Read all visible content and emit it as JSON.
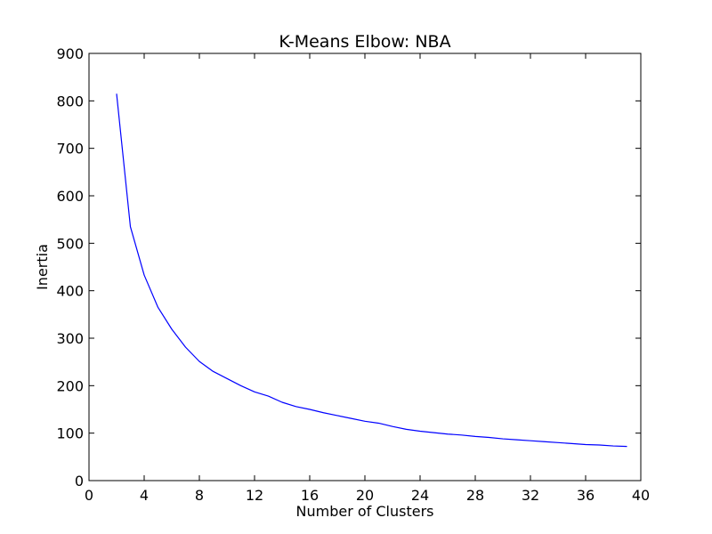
{
  "chart_data": {
    "type": "line",
    "title": "K-Means Elbow: NBA",
    "xlabel": "Number of Clusters",
    "ylabel": "Inertia",
    "xlim": [
      0,
      40
    ],
    "ylim": [
      0,
      900
    ],
    "xticks": [
      0,
      4,
      8,
      12,
      16,
      20,
      24,
      28,
      32,
      36,
      40
    ],
    "yticks": [
      0,
      100,
      200,
      300,
      400,
      500,
      600,
      700,
      800,
      900
    ],
    "grid": false,
    "series": [
      {
        "color": "#0000ff",
        "x": [
          2,
          3,
          4,
          5,
          6,
          7,
          8,
          9,
          10,
          11,
          12,
          13,
          14,
          15,
          16,
          17,
          18,
          19,
          20,
          21,
          22,
          23,
          24,
          25,
          26,
          27,
          28,
          29,
          30,
          31,
          32,
          33,
          34,
          35,
          36,
          37,
          38,
          39
        ],
        "y": [
          815,
          535,
          433,
          365,
          319,
          281,
          251,
          230,
          215,
          200,
          187,
          178,
          165,
          156,
          150,
          143,
          137,
          131,
          125,
          121,
          114,
          108,
          104,
          101,
          98,
          96,
          93,
          91,
          88,
          86,
          84,
          82,
          80,
          78,
          76,
          75,
          73,
          72
        ]
      }
    ]
  }
}
